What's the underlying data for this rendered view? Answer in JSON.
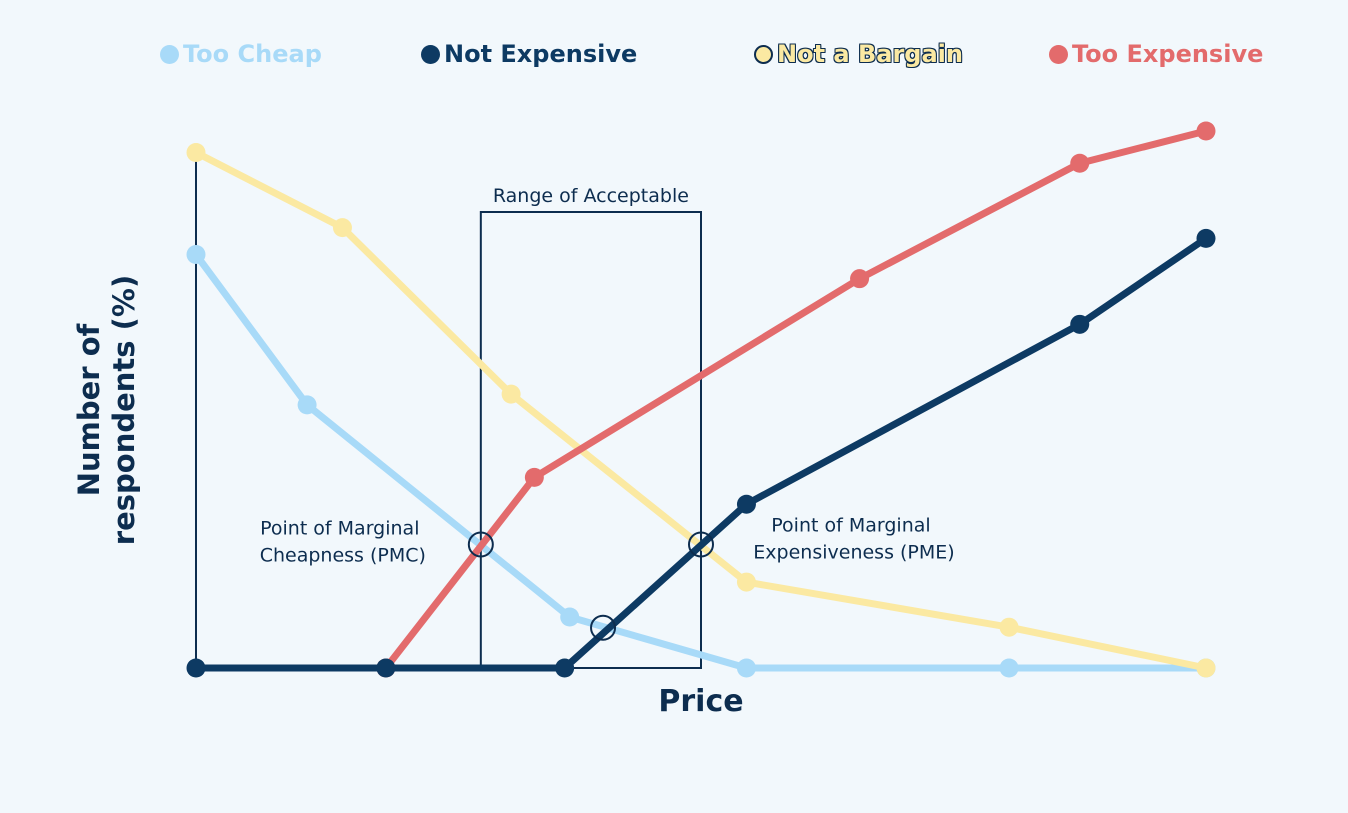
{
  "chart_data": {
    "type": "line",
    "xlabel": "Price",
    "ylabel": "Number of respondents (%)",
    "xlim": [
      0,
      10
    ],
    "ylim": [
      0,
      100
    ],
    "series": [
      {
        "name": "Too Cheap",
        "color": "#a8daf8",
        "points": [
          [
            0,
            77
          ],
          [
            1.1,
            49
          ],
          [
            3.7,
            9.5
          ],
          [
            5.45,
            0
          ],
          [
            8.05,
            0
          ],
          [
            10,
            0
          ]
        ]
      },
      {
        "name": "Not Expensive",
        "color": "#0d3a63",
        "points": [
          [
            0,
            0
          ],
          [
            1.88,
            0
          ],
          [
            3.65,
            0
          ],
          [
            5.45,
            30.5
          ],
          [
            8.75,
            64
          ],
          [
            10,
            80
          ]
        ]
      },
      {
        "name": "Not a Bargain",
        "color": "#fbe9a2",
        "points": [
          [
            0,
            96
          ],
          [
            1.45,
            82
          ],
          [
            3.12,
            51
          ],
          [
            5.45,
            16
          ],
          [
            8.05,
            7.6
          ],
          [
            10,
            0
          ]
        ]
      },
      {
        "name": "Too Expensive",
        "color": "#e36b6c",
        "points": [
          [
            1.88,
            0
          ],
          [
            3.35,
            35.5
          ],
          [
            6.57,
            72.5
          ],
          [
            8.75,
            94
          ],
          [
            10,
            100
          ]
        ]
      }
    ],
    "annotations": [
      {
        "text": "Range of Acceptable"
      },
      {
        "text": "Point of Marginal Cheapness (PMC)",
        "lines": [
          "Point of Marginal",
          "Cheapness (PMC)"
        ]
      },
      {
        "text": "Point of Marginal Expensiveness (PME)",
        "lines": [
          "Point of Marginal",
          "Expensiveness (PME)"
        ]
      }
    ],
    "intersection_points": [
      [
        2.82,
        23
      ],
      [
        5.0,
        23
      ],
      [
        4.03,
        7.5
      ]
    ],
    "acceptable_range": [
      2.82,
      5.0
    ]
  },
  "colors": {
    "background": "#f2f8fc",
    "text": "#0d2d4f",
    "axis": "#0d2d4f"
  }
}
